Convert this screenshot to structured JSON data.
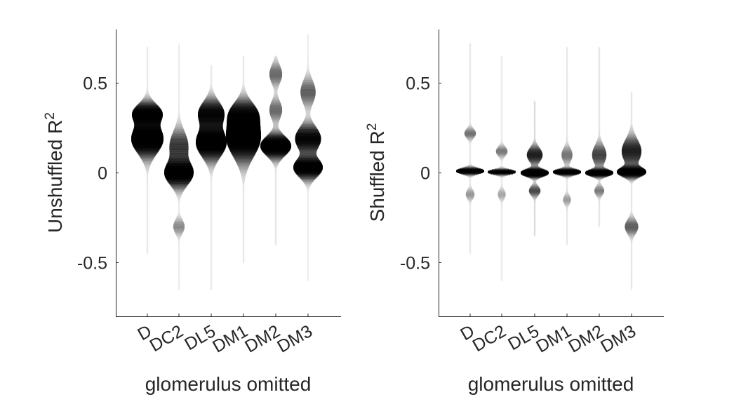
{
  "figure": {
    "background": "#ffffff",
    "ink_color": "#000000",
    "axis_color": "#262626"
  },
  "chart_data": [
    {
      "type": "violin",
      "categories": [
        "D",
        "DC2",
        "DL5",
        "DM1",
        "DM2",
        "DM3"
      ],
      "xlabel": "glomerulus omitted",
      "ylabel": "Unshuffled R",
      "ylabel_sup": "2",
      "ylim": [
        -0.8,
        0.8
      ],
      "yticks": [
        -0.5,
        0,
        0.5
      ],
      "ytick_labels": [
        "-0.5",
        "0",
        "0.5"
      ],
      "grid": false,
      "legend": "none",
      "series": [
        {
          "category": "D",
          "range": [
            -0.45,
            0.7
          ],
          "modes": [
            [
              0.19,
              0.06,
              1.0
            ],
            [
              0.33,
              0.04,
              0.85
            ]
          ]
        },
        {
          "category": "DC2",
          "range": [
            -0.65,
            0.72
          ],
          "modes": [
            [
              0.0,
              0.05,
              1.0
            ],
            [
              0.15,
              0.06,
              0.45
            ],
            [
              -0.3,
              0.03,
              0.18
            ]
          ]
        },
        {
          "category": "DL5",
          "range": [
            -0.65,
            0.6
          ],
          "modes": [
            [
              0.17,
              0.06,
              0.95
            ],
            [
              0.33,
              0.05,
              0.7
            ]
          ]
        },
        {
          "category": "DM1",
          "range": [
            -0.5,
            0.65
          ],
          "modes": [
            [
              0.2,
              0.08,
              1.0
            ],
            [
              0.33,
              0.05,
              0.55
            ]
          ]
        },
        {
          "category": "DM2",
          "range": [
            -0.4,
            0.65
          ],
          "modes": [
            [
              0.15,
              0.04,
              1.0
            ],
            [
              0.55,
              0.04,
              0.2
            ],
            [
              0.35,
              0.04,
              0.2
            ]
          ]
        },
        {
          "category": "DM3",
          "range": [
            -0.6,
            0.77
          ],
          "modes": [
            [
              0.03,
              0.04,
              1.0
            ],
            [
              0.19,
              0.05,
              0.8
            ],
            [
              0.45,
              0.05,
              0.3
            ]
          ]
        }
      ]
    },
    {
      "type": "violin",
      "categories": [
        "D",
        "DC2",
        "DL5",
        "DM1",
        "DM2",
        "DM3"
      ],
      "xlabel": "glomerulus omitted",
      "ylabel": "Shuffled R",
      "ylabel_sup": "2",
      "ylim": [
        -0.8,
        0.8
      ],
      "yticks": [
        -0.5,
        0,
        0.5
      ],
      "ytick_labels": [
        "-0.5",
        "0",
        "0.5"
      ],
      "grid": false,
      "legend": "none",
      "series": [
        {
          "category": "D",
          "range": [
            -0.45,
            0.72
          ],
          "modes": [
            [
              0.01,
              0.012,
              1.0
            ],
            [
              0.22,
              0.02,
              0.2
            ],
            [
              -0.12,
              0.02,
              0.12
            ]
          ]
        },
        {
          "category": "DC2",
          "range": [
            -0.6,
            0.65
          ],
          "modes": [
            [
              0.005,
              0.01,
              1.0
            ],
            [
              0.12,
              0.02,
              0.2
            ],
            [
              -0.12,
              0.02,
              0.1
            ]
          ]
        },
        {
          "category": "DL5",
          "range": [
            -0.35,
            0.4
          ],
          "modes": [
            [
              0.0,
              0.015,
              1.0
            ],
            [
              0.1,
              0.03,
              0.35
            ],
            [
              -0.1,
              0.02,
              0.2
            ]
          ]
        },
        {
          "category": "DM1",
          "range": [
            -0.4,
            0.7
          ],
          "modes": [
            [
              0.005,
              0.012,
              1.0
            ],
            [
              0.1,
              0.03,
              0.18
            ],
            [
              -0.15,
              0.02,
              0.1
            ]
          ]
        },
        {
          "category": "DM2",
          "range": [
            -0.3,
            0.7
          ],
          "modes": [
            [
              0.0,
              0.014,
              1.0
            ],
            [
              0.1,
              0.04,
              0.3
            ],
            [
              -0.1,
              0.02,
              0.15
            ]
          ]
        },
        {
          "category": "DM3",
          "range": [
            -0.65,
            0.45
          ],
          "modes": [
            [
              0.005,
              0.02,
              1.0
            ],
            [
              0.12,
              0.05,
              0.5
            ],
            [
              -0.3,
              0.03,
              0.25
            ]
          ]
        }
      ]
    }
  ]
}
